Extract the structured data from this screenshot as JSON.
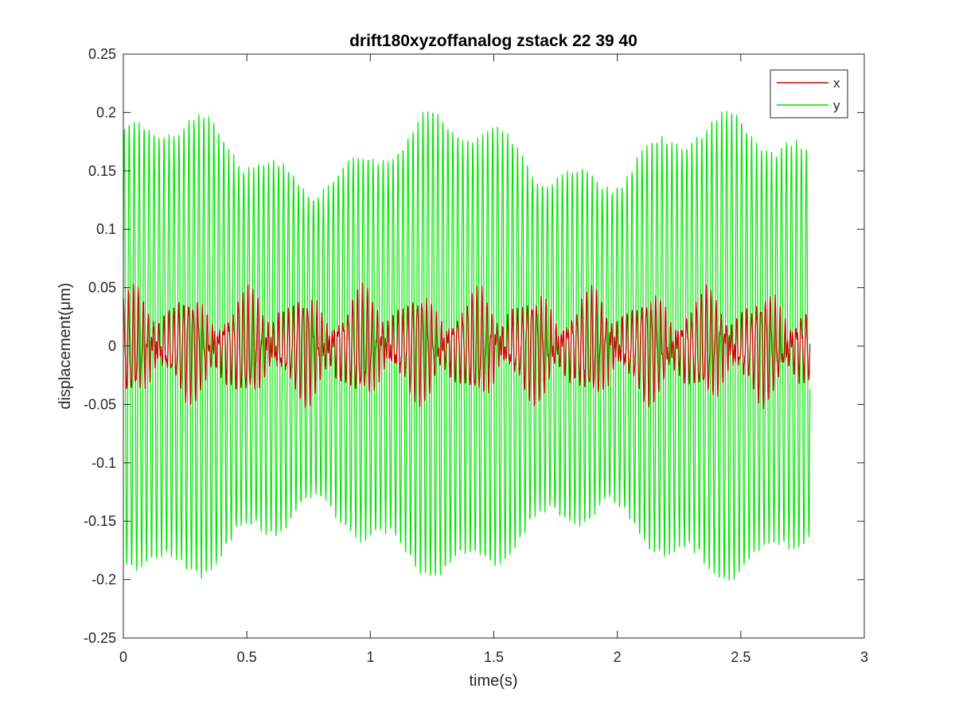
{
  "chart_data": {
    "type": "line",
    "title": "drift180xyzoffanalog zstack 22 39 40",
    "xlabel": "time(s)",
    "ylabel": "displacement(μm)",
    "xlim": [
      0,
      3
    ],
    "ylim": [
      -0.25,
      0.25
    ],
    "xticks": [
      0,
      0.5,
      1,
      1.5,
      2,
      2.5,
      3
    ],
    "xtick_labels": [
      "0",
      "0.5",
      "1",
      "1.5",
      "2",
      "2.5",
      "3"
    ],
    "yticks": [
      -0.25,
      -0.2,
      -0.15,
      -0.1,
      -0.05,
      0,
      0.05,
      0.1,
      0.15,
      0.2,
      0.25
    ],
    "ytick_labels": [
      "-0.25",
      "-0.2",
      "-0.15",
      "-0.1",
      "-0.05",
      "0",
      "0.05",
      "0.1",
      "0.15",
      "0.2",
      "0.25"
    ],
    "grid": false,
    "legend_position": "top-right",
    "x_end": 2.78,
    "sample_rate_hz": 1000,
    "series": [
      {
        "name": "x",
        "color": "#cc0000",
        "description": "oscillation amplitude modulated, mostly within ±0.06 μm",
        "peak_max": 0.09,
        "peak_min": -0.065
      },
      {
        "name": "y",
        "color": "#00e600",
        "description": "oscillation, amplitude about 0.14–0.2 μm",
        "peak_max": 0.205,
        "peak_min": -0.205
      }
    ]
  }
}
